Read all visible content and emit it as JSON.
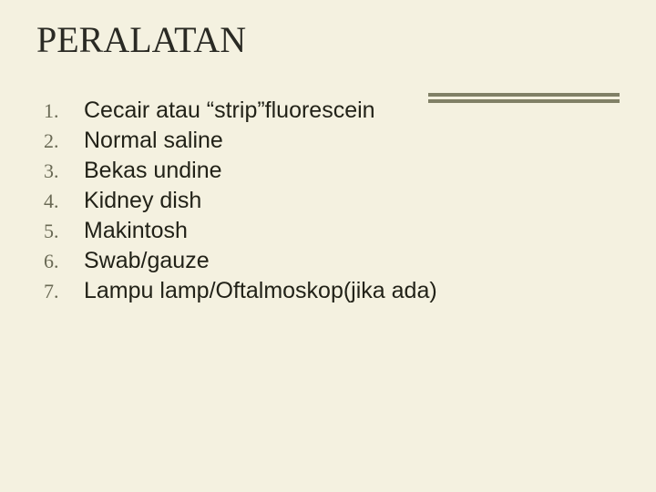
{
  "slide": {
    "background_color": "#f4f1e0",
    "accent_color": "#808066",
    "title_color": "#2a2a24",
    "list_num_color": "#6a6a55",
    "list_text_color": "#222218",
    "title_font": "Times New Roman",
    "body_font": "Arial",
    "title_fontsize": 40,
    "list_num_fontsize": 22,
    "list_text_fontsize": 25,
    "title": "PERALATAN",
    "items": [
      {
        "num": "1.",
        "text": "Cecair atau “strip”fluorescein"
      },
      {
        "num": "2.",
        "text": "Normal saline"
      },
      {
        "num": "3.",
        "text": "Bekas undine"
      },
      {
        "num": "4.",
        "text": "Kidney dish"
      },
      {
        "num": "5.",
        "text": "Makintosh"
      },
      {
        "num": "6.",
        "text": "Swab/gauze"
      },
      {
        "num": "7.",
        "text": "Lampu lamp/Oftalmoskop(jika ada)"
      }
    ]
  }
}
